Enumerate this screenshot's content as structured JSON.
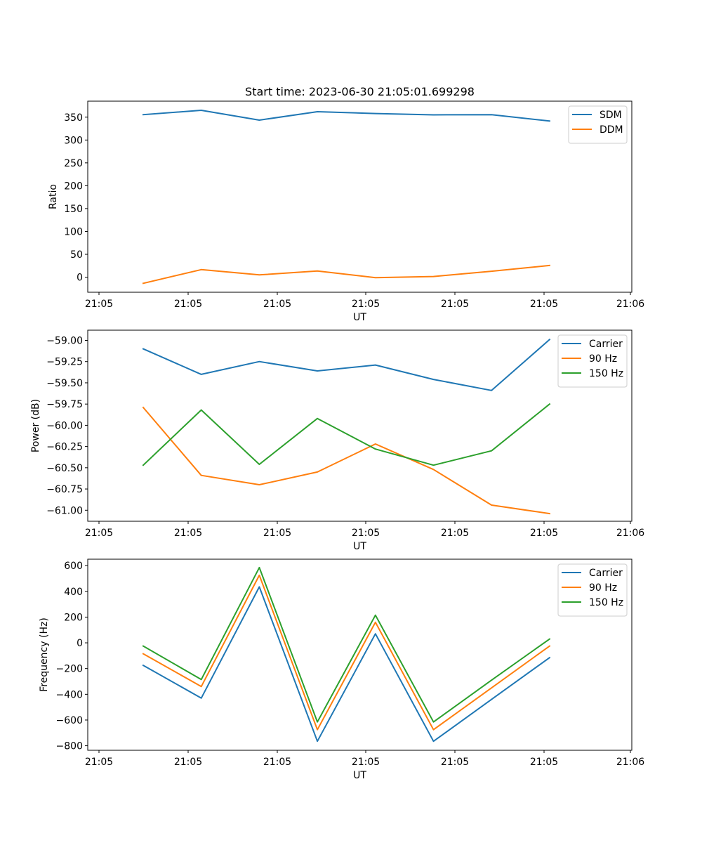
{
  "figure": {
    "title": "Start time: 2023-06-30 21:05:01.699298"
  },
  "chart_data": [
    {
      "type": "line",
      "title": "Start time: 2023-06-30 21:05:01.699298",
      "xlabel": "UT",
      "ylabel": "Ratio",
      "x_tick_labels": [
        "21:05",
        "21:05",
        "21:05",
        "21:05",
        "21:05",
        "21:05",
        "21:06"
      ],
      "y_ticks": [
        0,
        50,
        100,
        150,
        200,
        250,
        300,
        350
      ],
      "y_tick_labels": [
        "0",
        "50",
        "100",
        "150",
        "200",
        "250",
        "300",
        "350"
      ],
      "ylim": [
        -33,
        385
      ],
      "grid": false,
      "legend_position": "top-right",
      "series": [
        {
          "name": "SDM",
          "color": "#1f77b4",
          "values": [
            355.5,
            365,
            343.5,
            362,
            358,
            355,
            355.5,
            341.5
          ]
        },
        {
          "name": "DDM",
          "color": "#ff7f0e",
          "values": [
            -13.5,
            16.5,
            5,
            13.5,
            -1,
            1.5,
            13,
            25.5
          ]
        }
      ]
    },
    {
      "type": "line",
      "title": "",
      "xlabel": "UT",
      "ylabel": "Power (dB)",
      "x_tick_labels": [
        "21:05",
        "21:05",
        "21:05",
        "21:05",
        "21:05",
        "21:05",
        "21:06"
      ],
      "y_ticks": [
        -59.0,
        -59.25,
        -59.5,
        -59.75,
        -60.0,
        -60.25,
        -60.5,
        -60.75,
        -61.0
      ],
      "y_tick_labels": [
        "−59.00",
        "−59.25",
        "−59.50",
        "−59.75",
        "−60.00",
        "−60.25",
        "−60.50",
        "−60.75",
        "−61.00"
      ],
      "ylim": [
        -61.13,
        -58.88
      ],
      "grid": false,
      "legend_position": "top-right",
      "series": [
        {
          "name": "Carrier",
          "color": "#1f77b4",
          "values": [
            -59.1,
            -59.4,
            -59.25,
            -59.36,
            -59.29,
            -59.46,
            -59.59,
            -58.99
          ]
        },
        {
          "name": "90 Hz",
          "color": "#ff7f0e",
          "values": [
            -59.79,
            -60.59,
            -60.7,
            -60.55,
            -60.22,
            -60.52,
            -60.94,
            -61.04
          ]
        },
        {
          "name": "150 Hz",
          "color": "#2ca02c",
          "values": [
            -60.47,
            -59.82,
            -60.46,
            -59.92,
            -60.28,
            -60.47,
            -60.3,
            -59.75
          ]
        }
      ]
    },
    {
      "type": "line",
      "title": "",
      "xlabel": "UT",
      "ylabel": "Frequency (Hz)",
      "x_tick_labels": [
        "21:05",
        "21:05",
        "21:05",
        "21:05",
        "21:05",
        "21:05",
        "21:06"
      ],
      "y_ticks": [
        -800,
        -600,
        -400,
        -200,
        0,
        200,
        400,
        600
      ],
      "y_tick_labels": [
        "−800",
        "−600",
        "−400",
        "−200",
        "0",
        "200",
        "400",
        "600"
      ],
      "ylim": [
        -835,
        650
      ],
      "grid": false,
      "legend_position": "top-right",
      "series": [
        {
          "name": "Carrier",
          "color": "#1f77b4",
          "values": [
            -175,
            -430,
            435,
            -765,
            70,
            -765,
            -440,
            -115
          ]
        },
        {
          "name": "90 Hz",
          "color": "#ff7f0e",
          "values": [
            -85,
            -340,
            525,
            -675,
            160,
            -675,
            -350,
            -25
          ]
        },
        {
          "name": "150 Hz",
          "color": "#2ca02c",
          "values": [
            -25,
            -285,
            585,
            -615,
            215,
            -615,
            -290,
            30
          ]
        }
      ]
    }
  ]
}
